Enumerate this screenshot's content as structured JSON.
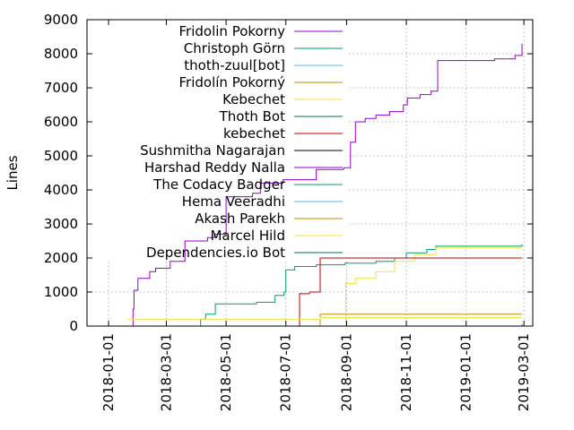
{
  "chart_data": {
    "type": "line",
    "title": "",
    "xlabel": "",
    "ylabel": "Lines",
    "xlim": [
      "2017-12-10",
      "2019-03-10"
    ],
    "ylim": [
      0,
      9000
    ],
    "y_ticks": [
      0,
      1000,
      2000,
      3000,
      4000,
      5000,
      6000,
      7000,
      8000,
      9000
    ],
    "x_ticks": [
      "2018-01-01",
      "2018-03-01",
      "2018-05-01",
      "2018-07-01",
      "2018-09-01",
      "2018-11-01",
      "2019-01-01",
      "2019-03-01"
    ],
    "grid": true,
    "legend_position": "top-right",
    "series": [
      {
        "name": "Fridolin Pokorny",
        "color": "#9400d3",
        "x": [
          "2018-01-23",
          "2018-01-26",
          "2018-01-27",
          "2018-01-31",
          "2018-02-12",
          "2018-02-18",
          "2018-03-05",
          "2018-03-20",
          "2018-04-12",
          "2018-04-19",
          "2018-05-01",
          "2018-05-28",
          "2018-06-05",
          "2018-06-28",
          "2018-07-05",
          "2018-08-01",
          "2018-08-29",
          "2018-09-05",
          "2018-09-10",
          "2018-09-20",
          "2018-10-01",
          "2018-10-15",
          "2018-10-29",
          "2018-11-02",
          "2018-11-15",
          "2018-11-26",
          "2018-12-03",
          "2018-12-20",
          "2019-01-15",
          "2019-01-30",
          "2019-02-20",
          "2019-02-27"
        ],
        "values": [
          0,
          500,
          1050,
          1400,
          1600,
          1700,
          1900,
          2500,
          2600,
          2700,
          3800,
          3900,
          4200,
          4300,
          4300,
          4600,
          4650,
          5400,
          6000,
          6100,
          6200,
          6300,
          6500,
          6700,
          6800,
          6900,
          7800,
          7800,
          7800,
          7850,
          7950,
          8300
        ]
      },
      {
        "name": "Christoph Görn",
        "color": "#009e73",
        "x": [
          "2018-04-01",
          "2018-04-05",
          "2018-04-10",
          "2018-04-20",
          "2018-06-01",
          "2018-06-20",
          "2018-06-29",
          "2018-07-01",
          "2018-07-10",
          "2018-08-01",
          "2018-08-30",
          "2018-10-01",
          "2018-10-20",
          "2018-11-01",
          "2018-11-22",
          "2018-12-01",
          "2019-02-27"
        ],
        "values": [
          0,
          200,
          350,
          650,
          700,
          900,
          1000,
          1650,
          1750,
          1800,
          1850,
          1900,
          2000,
          2150,
          2250,
          2350,
          2400
        ]
      },
      {
        "name": "thoth-zuul[bot]",
        "color": "#56b4e9",
        "x": [
          "2018-06-25",
          "2019-02-27"
        ],
        "values": [
          0,
          0
        ]
      },
      {
        "name": "Fridolín Pokorný",
        "color": "#c09000",
        "x": [
          "2018-08-01",
          "2018-08-05",
          "2019-02-27"
        ],
        "values": [
          0,
          350,
          350
        ]
      },
      {
        "name": "Kebechet",
        "color": "#f0e442",
        "x": [
          "2018-08-25",
          "2018-08-31",
          "2018-09-10",
          "2018-10-01",
          "2018-10-20",
          "2018-11-10",
          "2018-12-01",
          "2019-02-27"
        ],
        "values": [
          0,
          1250,
          1400,
          1600,
          1900,
          2100,
          2300,
          2300
        ]
      },
      {
        "name": "Thoth Bot",
        "color": "#007060",
        "x": [
          "2018-06-25",
          "2019-02-27"
        ],
        "values": [
          0,
          50
        ]
      },
      {
        "name": "kebechet",
        "color": "#c00000",
        "x": [
          "2018-07-05",
          "2018-07-15",
          "2018-07-25",
          "2018-08-05",
          "2018-08-15",
          "2018-10-25",
          "2019-02-27"
        ],
        "values": [
          0,
          950,
          1000,
          2000,
          2000,
          2000,
          2000
        ]
      },
      {
        "name": "Sushmitha Nagarajan",
        "color": "#000000",
        "x": [
          "2018-06-25",
          "2019-02-27"
        ],
        "values": [
          0,
          0
        ]
      },
      {
        "name": "Harshad Reddy Nalla",
        "color": "#9400d3",
        "x": [
          "2018-06-25",
          "2019-02-27"
        ],
        "values": [
          0,
          0
        ]
      },
      {
        "name": "The Codacy Badger",
        "color": "#009e73",
        "x": [
          "2018-06-25",
          "2019-02-27"
        ],
        "values": [
          0,
          0
        ]
      },
      {
        "name": "Hema Veeradhi",
        "color": "#56b4e9",
        "x": [
          "2018-06-25",
          "2019-02-27"
        ],
        "values": [
          0,
          0
        ]
      },
      {
        "name": "Akash Parekh",
        "color": "#c09000",
        "x": [
          "2018-06-25",
          "2019-02-27"
        ],
        "values": [
          0,
          0
        ]
      },
      {
        "name": "Marcel Hild",
        "color": "#f0e442",
        "x": [
          "2018-01-20",
          "2018-08-01",
          "2018-08-05",
          "2019-02-27"
        ],
        "values": [
          200,
          200,
          250,
          250
        ]
      },
      {
        "name": "Dependencies.io Bot",
        "color": "#007060",
        "x": [
          "2018-06-25",
          "2019-02-27"
        ],
        "values": [
          0,
          0
        ]
      }
    ]
  }
}
